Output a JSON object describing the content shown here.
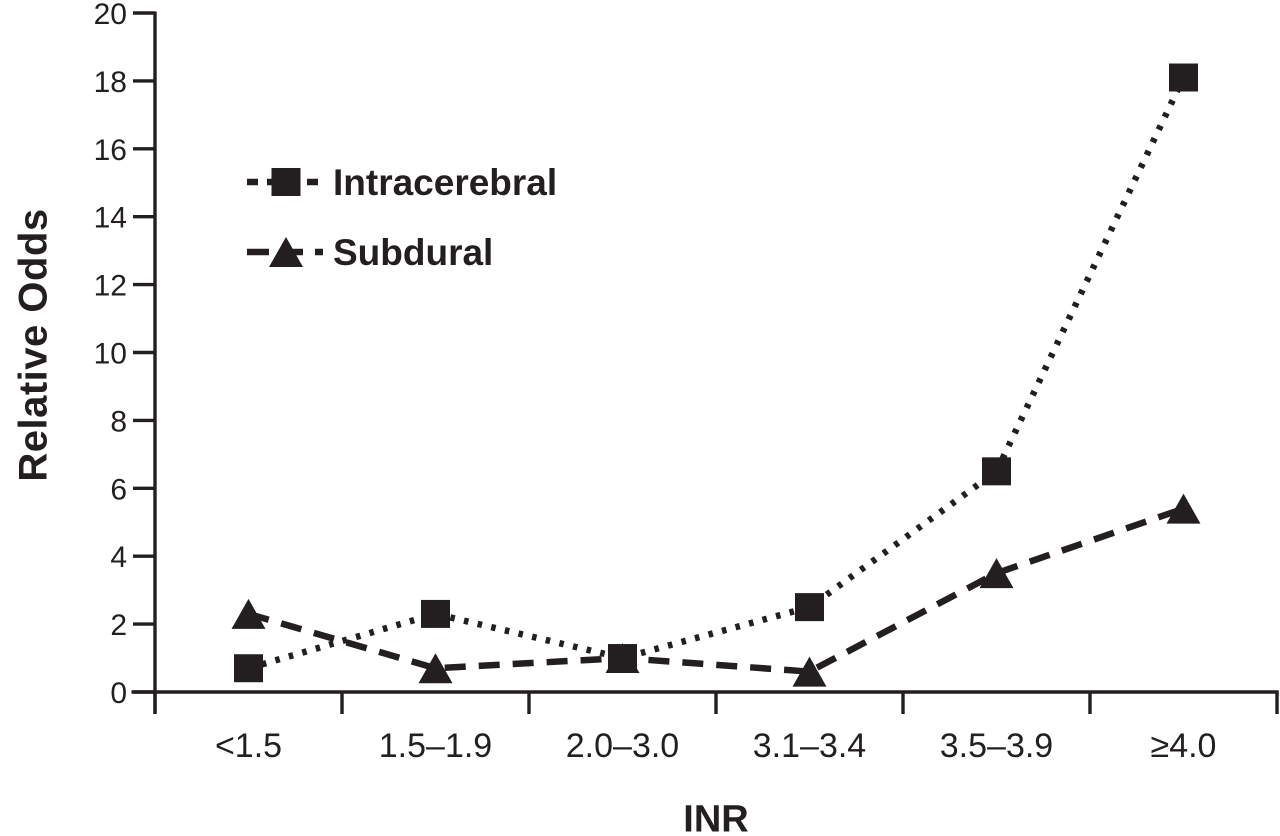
{
  "chart_data": {
    "type": "line",
    "title": "",
    "xlabel": "INR",
    "ylabel": "Relative Odds",
    "categories": [
      "<1.5",
      "1.5–1.9",
      "2.0–3.0",
      "3.1–3.4",
      "3.5–3.9",
      "≥4.0"
    ],
    "series": [
      {
        "name": "Intracerebral",
        "marker": "square",
        "line_style": "dotted",
        "values": [
          0.7,
          2.3,
          1.0,
          2.5,
          6.5,
          18.1
        ]
      },
      {
        "name": "Subdural",
        "marker": "triangle",
        "line_style": "dashed",
        "values": [
          2.3,
          0.7,
          1.0,
          0.6,
          3.5,
          5.4
        ]
      }
    ],
    "ylim": [
      0,
      20
    ],
    "yticks": [
      0,
      2,
      4,
      6,
      8,
      10,
      12,
      14,
      16,
      18,
      20
    ],
    "grid": false,
    "legend_position": "upper-left-inside",
    "color": "#231f20",
    "background": "#ffffff"
  }
}
